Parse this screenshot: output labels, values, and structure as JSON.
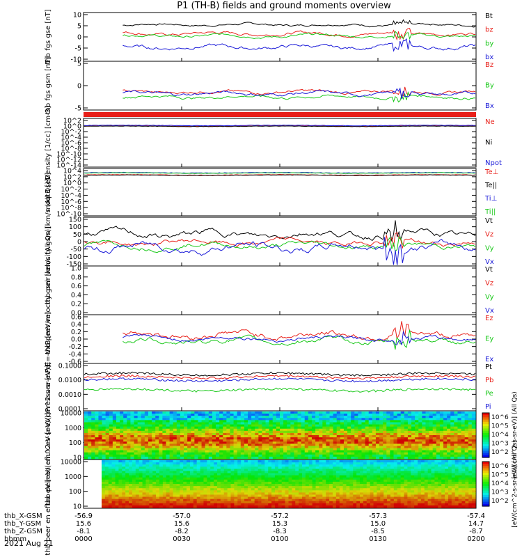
{
  "title": "P1 (TH-B) fields and ground moments overview",
  "date_label": "2021 Aug 21",
  "colors": {
    "black": "#000000",
    "red": "#e8201a",
    "green": "#18c818",
    "blue": "#1a1ad8"
  },
  "ephemeris": {
    "rows": [
      {
        "label": "thb_X-GSM",
        "values": [
          "-56.9",
          "-57.0",
          "-57.2",
          "-57.3",
          "-57.4"
        ]
      },
      {
        "label": "thb_Y-GSM",
        "values": [
          "15.6",
          "15.6",
          "15.3",
          "15.0",
          "14.7"
        ]
      },
      {
        "label": "thb_Z-GSM",
        "values": [
          "-8.1",
          "-8.2",
          "-8.3",
          "-8.5",
          "-8.7"
        ]
      },
      {
        "label": "hhmm",
        "values": [
          "0000",
          "0030",
          "0100",
          "0130",
          "0200"
        ]
      }
    ]
  },
  "colorbars": [
    {
      "label": "[eV/(cm^2-s-sr-eV)] (All Qs)",
      "ticks": [
        "10^6",
        "10^5",
        "10^4",
        "10^3",
        "10^2"
      ]
    },
    {
      "label": "[eV/(cm^2-s-sr-eV)] (All Qs)",
      "ticks": [
        "10^6",
        "10^5",
        "10^4",
        "10^3",
        "10^2"
      ]
    }
  ],
  "chart_data": [
    {
      "type": "line",
      "ylabel": "thb fgs gse [nT]",
      "yticks": [
        "10",
        "5",
        "0",
        "-5",
        "-10"
      ],
      "ylim": [
        -10,
        10
      ],
      "data_start_hhmm": "0012",
      "series": [
        {
          "name": "Bt",
          "color": "black",
          "level": 5.5,
          "noise": 0.6
        },
        {
          "name": "bz",
          "color": "red",
          "level": 1.5,
          "noise": 0.8
        },
        {
          "name": "by",
          "color": "green",
          "level": 0.5,
          "noise": 0.7
        },
        {
          "name": "bx",
          "color": "blue",
          "level": -4.5,
          "noise": 1.0
        }
      ]
    },
    {
      "type": "line",
      "ylabel": "thb fgs gsm [nT]",
      "yticks": [
        "5",
        "0",
        "-5"
      ],
      "ylim": [
        -5,
        13
      ],
      "data_start_hhmm": "0012",
      "series": [
        {
          "name": "Bz",
          "color": "red",
          "level": 1.5,
          "noise": 0.7
        },
        {
          "name": "By",
          "color": "green",
          "level": -0.5,
          "noise": 0.7
        },
        {
          "name": "Bx",
          "color": "blue",
          "level": 0.8,
          "noise": 0.8
        }
      ]
    },
    {
      "type": "line",
      "ylabel": "Density [1/cc] [cm-3]",
      "yticks": [
        "10^2",
        "10^0",
        "10^-2",
        "10^-4",
        "10^-6",
        "10^-8",
        "10^-10",
        "10^-12",
        "10^-14"
      ],
      "ylim_log10": [
        -14,
        2
      ],
      "series": [
        {
          "name": "Ne",
          "color": "red",
          "level_log10": 0.0
        },
        {
          "name": "Ni",
          "color": "black",
          "level_log10": -0.1
        },
        {
          "name": "Npot",
          "color": "blue",
          "level_log10": 0.2
        }
      ]
    },
    {
      "type": "line",
      "ylabel": "moqt3 [eV]",
      "yticks": [
        "10^4",
        "10^2",
        "10^0",
        "10^-2",
        "10^-4",
        "10^-6",
        "10^-8",
        "10^-10"
      ],
      "ylim_log10": [
        -10,
        4
      ],
      "series": [
        {
          "name": "Te⊥",
          "color": "red",
          "level_log10": 2.6
        },
        {
          "name": "Te||",
          "color": "black",
          "level_log10": 2.5
        },
        {
          "name": "Ti⊥",
          "color": "blue",
          "level_log10": 3.3
        },
        {
          "name": "Ti||",
          "color": "green",
          "level_log10": 3.2
        }
      ]
    },
    {
      "type": "line",
      "ylabel": "thb peir velocity gsm [km/s (All Qs)]",
      "yticks": [
        "150",
        "100",
        "50",
        "0",
        "-50",
        "-100",
        "-150"
      ],
      "ylim": [
        -150,
        150
      ],
      "series": [
        {
          "name": "Vt",
          "color": "black",
          "level": 50,
          "noise": 25
        },
        {
          "name": "Vz",
          "color": "red",
          "level": -5,
          "noise": 20
        },
        {
          "name": "Vy",
          "color": "green",
          "level": -25,
          "noise": 20
        },
        {
          "name": "Vx",
          "color": "blue",
          "level": -40,
          "noise": 30
        }
      ]
    },
    {
      "type": "line",
      "ylabel": "thb peer velocity gsm [km/s (All Qs)]",
      "yticks": [
        "1.0",
        "0.8",
        "0.6",
        "0.4",
        "0.2",
        "0.0"
      ],
      "ylim": [
        0,
        1
      ],
      "series": [
        {
          "name": "Vt",
          "color": "black"
        },
        {
          "name": "Vz",
          "color": "red"
        },
        {
          "name": "Vy",
          "color": "green"
        },
        {
          "name": "Vx",
          "color": "blue"
        }
      ]
    },
    {
      "type": "line",
      "ylabel": "E=-VxB [mV/m]",
      "yticks": [
        "0.6",
        "0.4",
        "0.2",
        "0.0",
        "-0.2",
        "-0.4",
        "-0.6"
      ],
      "ylim": [
        -0.6,
        0.6
      ],
      "data_start_hhmm": "0012",
      "series": [
        {
          "name": "Ez",
          "color": "red",
          "level": 0.12,
          "noise": 0.1
        },
        {
          "name": "Ey",
          "color": "green",
          "level": -0.05,
          "noise": 0.08
        },
        {
          "name": "Ex",
          "color": "blue",
          "level": 0.02,
          "noise": 0.06
        }
      ]
    },
    {
      "type": "line",
      "ylabel": "Pressure [nPa]",
      "yticks": [
        "0.1000",
        "0.0100",
        "0.0010",
        "0.0001"
      ],
      "ylim_log10": [
        -4,
        -1
      ],
      "series": [
        {
          "name": "Pt",
          "color": "black",
          "level_log10": -1.6
        },
        {
          "name": "Pb",
          "color": "red",
          "level_log10": -1.8
        },
        {
          "name": "Pe",
          "color": "green",
          "level_log10": -2.7
        },
        {
          "name": "Pi",
          "color": "blue",
          "level_log10": -2.0
        }
      ]
    },
    {
      "type": "heatmap",
      "ylabel": "thb peir en eflux eV [eV/(cm^2-s-sr-eV)]",
      "yticks": [
        "10000",
        "1000",
        "100",
        "10"
      ],
      "ylim": [
        5,
        25000
      ]
    },
    {
      "type": "heatmap",
      "ylabel": "thb peer en eflux eV [eV/(cm^2-s-sr-eV)]",
      "yticks": [
        "10000",
        "1000",
        "100",
        "10"
      ],
      "ylim": [
        5,
        25000
      ]
    }
  ]
}
